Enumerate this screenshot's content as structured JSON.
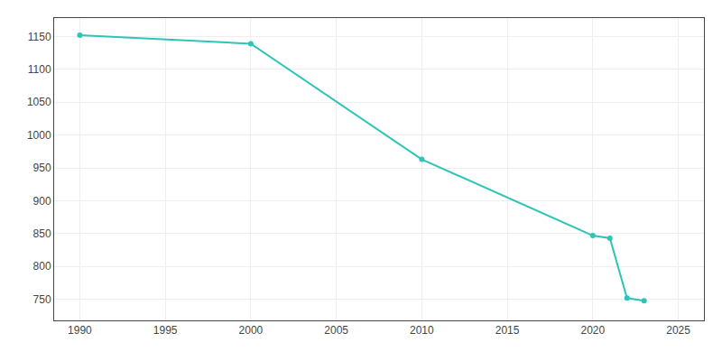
{
  "chart_data": {
    "type": "line",
    "x": [
      1990,
      2000,
      2010,
      2020,
      2021,
      2022,
      2023
    ],
    "values": [
      1152,
      1139,
      963,
      847,
      843,
      752,
      748
    ],
    "color": "#2EC4B6",
    "marker": "circle",
    "xlim": [
      1988.5,
      2026.5
    ],
    "ylim": [
      718,
      1178
    ],
    "xticks": [
      1990,
      1995,
      2000,
      2005,
      2010,
      2015,
      2020,
      2025
    ],
    "yticks": [
      750,
      800,
      850,
      900,
      950,
      1000,
      1050,
      1100,
      1150
    ],
    "grid": true
  }
}
